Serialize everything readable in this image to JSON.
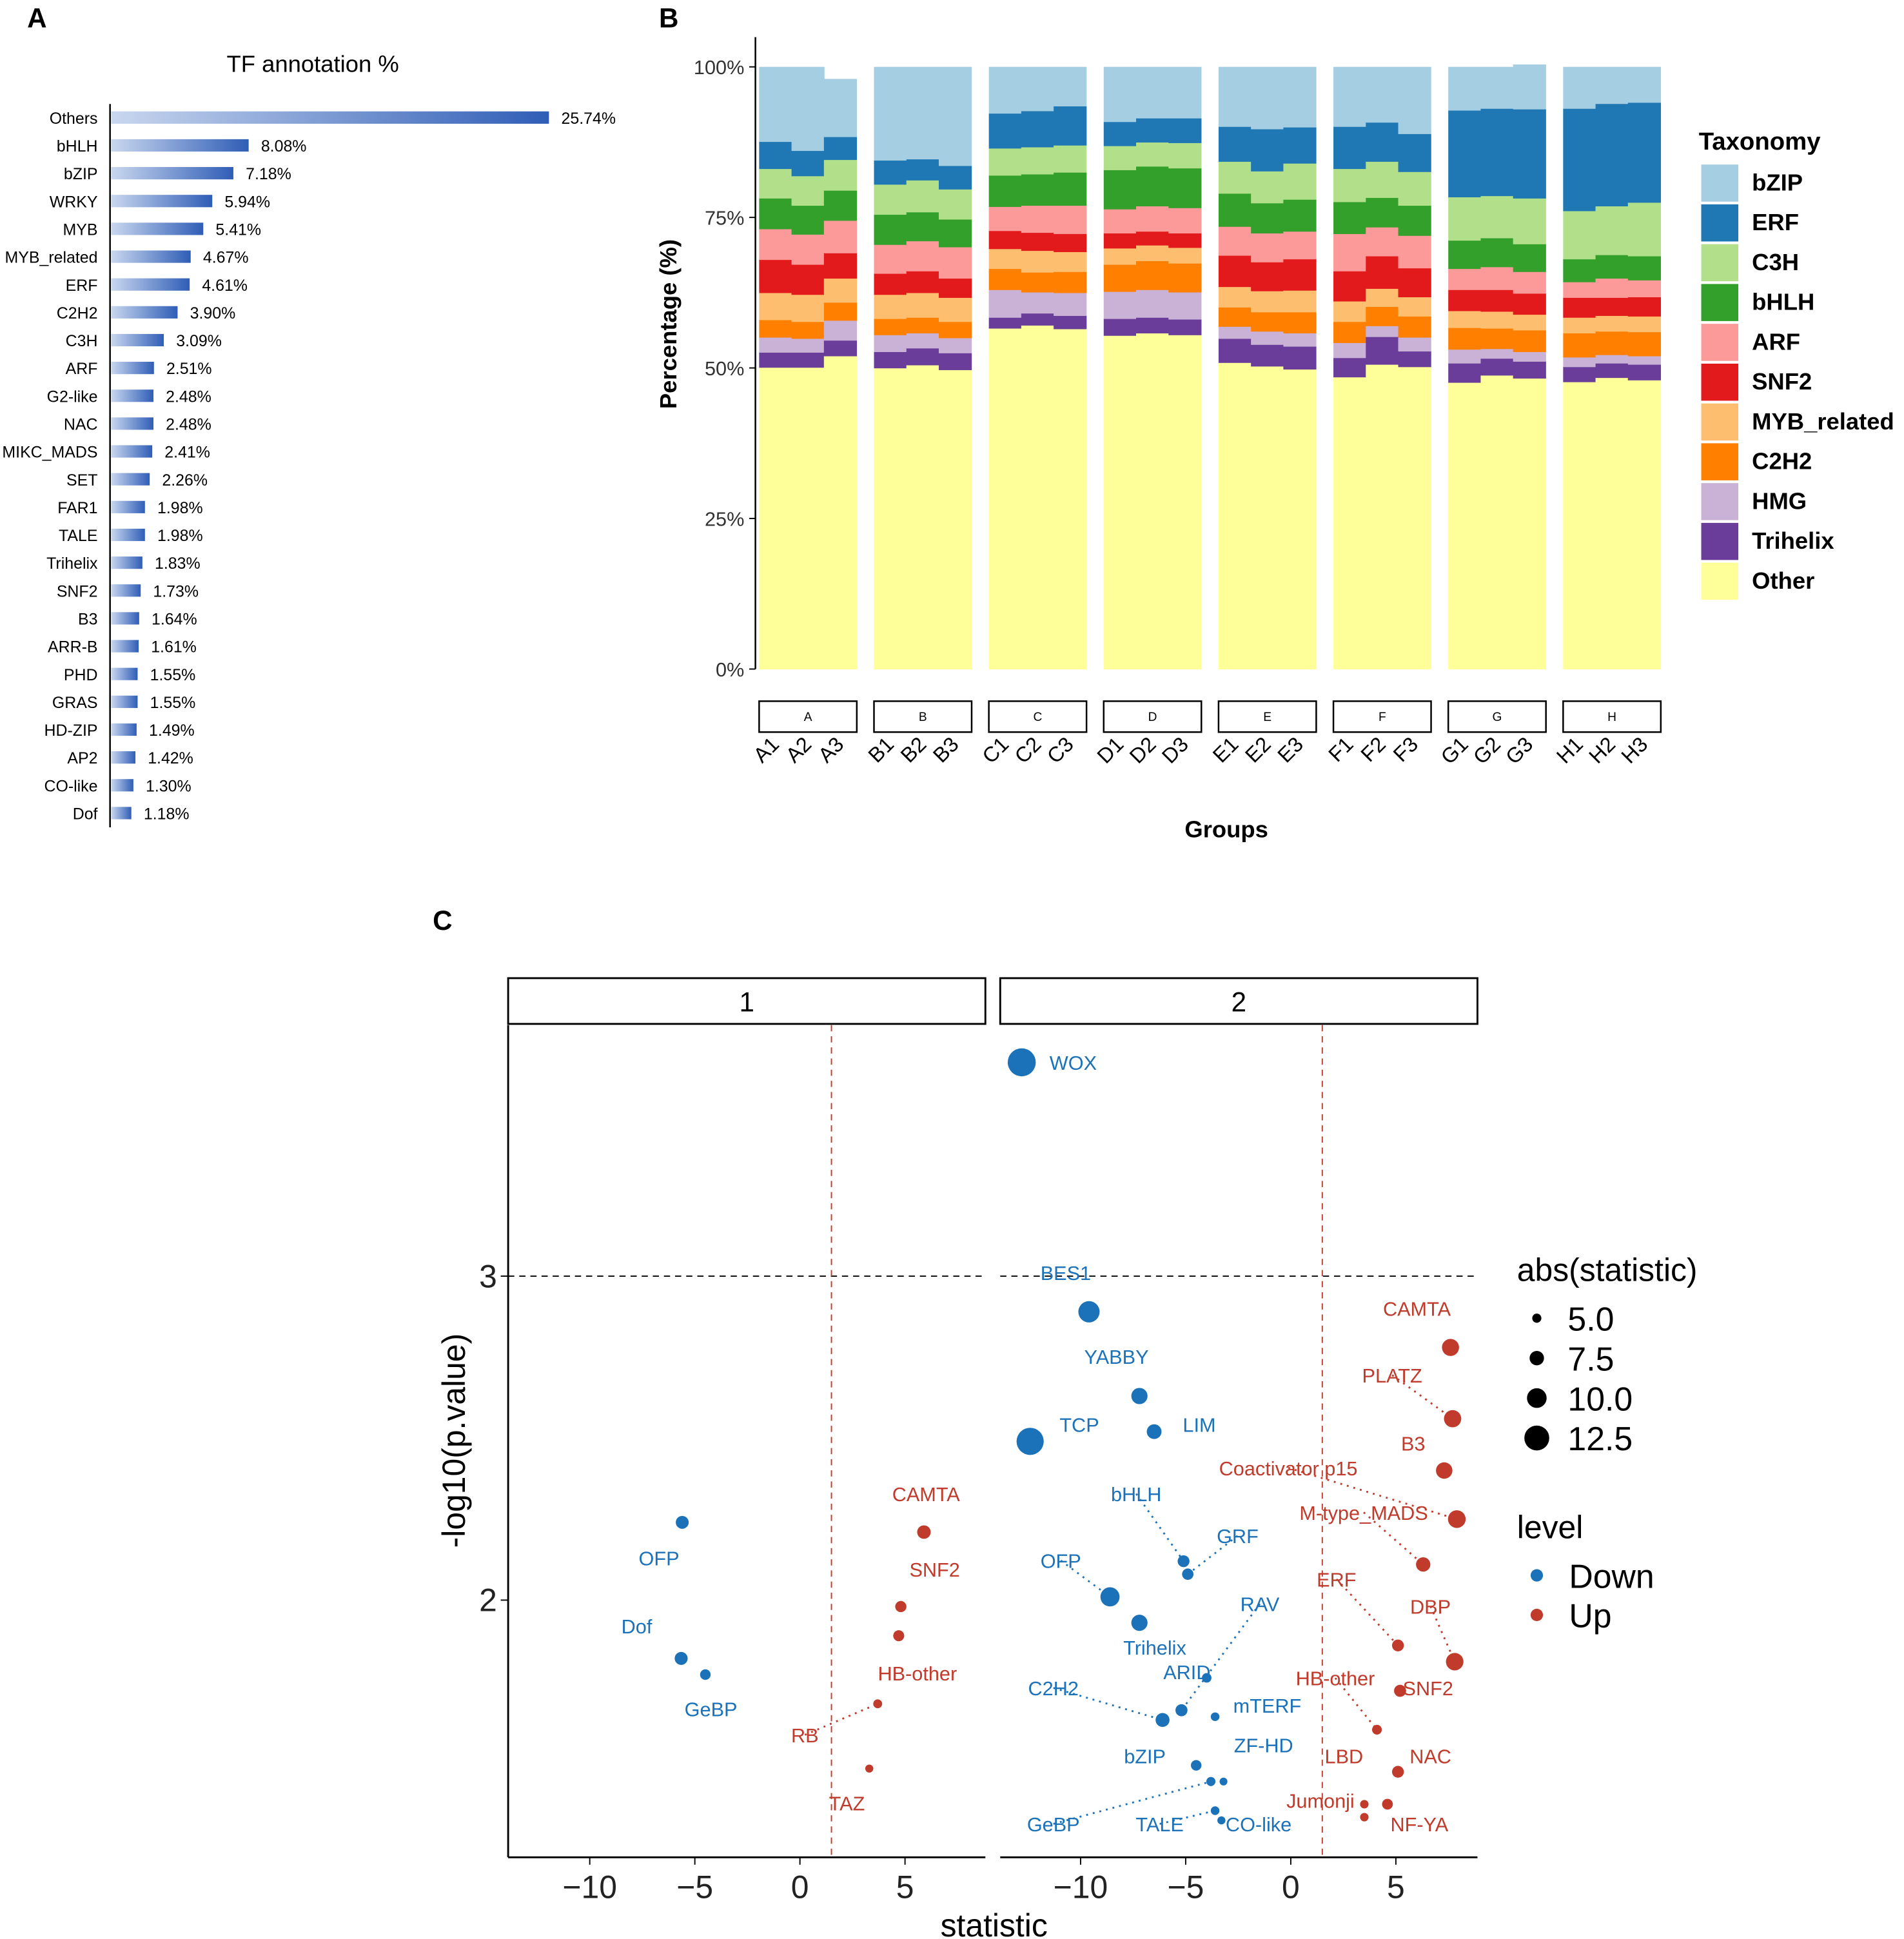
{
  "panel_labels": {
    "a": "A",
    "b": "B",
    "c": "C"
  },
  "chart_data": [
    {
      "type": "bar",
      "orientation": "horizontal",
      "title": "TF annotation %",
      "categories": [
        "Others",
        "bHLH",
        "bZIP",
        "WRKY",
        "MYB",
        "MYB_related",
        "ERF",
        "C2H2",
        "C3H",
        "ARF",
        "G2-like",
        "NAC",
        "MIKC_MADS",
        "SET",
        "FAR1",
        "TALE",
        "Trihelix",
        "SNF2",
        "B3",
        "ARR-B",
        "PHD",
        "GRAS",
        "HD-ZIP",
        "AP2",
        "CO-like",
        "Dof"
      ],
      "values": [
        25.74,
        8.08,
        7.18,
        5.94,
        5.41,
        4.67,
        4.61,
        3.9,
        3.09,
        2.51,
        2.48,
        2.48,
        2.41,
        2.26,
        1.98,
        1.98,
        1.83,
        1.73,
        1.64,
        1.61,
        1.55,
        1.55,
        1.49,
        1.42,
        1.3,
        1.18
      ],
      "data_labels": [
        "25.74%",
        "8.08%",
        "7.18%",
        "5.94%",
        "5.41%",
        "4.67%",
        "4.61%",
        "3.90%",
        "3.09%",
        "2.51%",
        "2.48%",
        "2.48%",
        "2.41%",
        "2.26%",
        "1.98%",
        "1.98%",
        "1.83%",
        "1.73%",
        "1.64%",
        "1.61%",
        "1.55%",
        "1.55%",
        "1.49%",
        "1.42%",
        "1.30%",
        "1.18%"
      ],
      "colors": {
        "start": "#c9d7ef",
        "end": "#2f5db6"
      }
    },
    {
      "type": "bar",
      "stacked": true,
      "xlabel": "Groups",
      "ylabel": "Percentage (%)",
      "ylim": [
        0,
        100
      ],
      "yticks": [
        "0%",
        "25%",
        "50%",
        "75%",
        "100%"
      ],
      "yticks_values": [
        0,
        25,
        50,
        75,
        100
      ],
      "legend_title": "Taxonomy",
      "legend_position": "right",
      "groups": [
        "A",
        "B",
        "C",
        "D",
        "E",
        "F",
        "G",
        "H"
      ],
      "categories": [
        "A1",
        "A2",
        "A3",
        "B1",
        "B2",
        "B3",
        "C1",
        "C2",
        "C3",
        "D1",
        "D2",
        "D3",
        "E1",
        "E2",
        "E3",
        "F1",
        "F2",
        "F3",
        "G1",
        "G2",
        "G3",
        "H1",
        "H2",
        "H3"
      ],
      "series": [
        {
          "name": "Other",
          "color": "#ffff99",
          "values": [
            50.1,
            50.1,
            52.0,
            50.0,
            50.5,
            49.7,
            56.6,
            57.1,
            56.5,
            55.4,
            55.8,
            55.5,
            50.9,
            50.3,
            49.8,
            48.5,
            50.6,
            50.2,
            47.6,
            48.8,
            48.3,
            47.7,
            48.4,
            48.0
          ]
        },
        {
          "name": "Trihelix",
          "color": "#6a3d9a",
          "values": [
            2.5,
            2.5,
            2.6,
            2.7,
            2.8,
            2.8,
            1.8,
            2.0,
            2.2,
            2.8,
            2.6,
            2.6,
            4.0,
            3.6,
            3.8,
            3.2,
            4.6,
            2.6,
            3.2,
            2.8,
            2.8,
            2.5,
            2.4,
            2.6
          ]
        },
        {
          "name": "HMG",
          "color": "#cab2d6",
          "values": [
            2.5,
            2.3,
            3.3,
            2.8,
            2.5,
            2.5,
            4.6,
            3.5,
            3.8,
            4.5,
            4.6,
            4.5,
            2.0,
            2.2,
            2.2,
            2.5,
            1.8,
            2.3,
            2.3,
            1.6,
            1.6,
            1.6,
            1.4,
            1.4
          ]
        },
        {
          "name": "C2H2",
          "color": "#ff7f00",
          "values": [
            2.9,
            2.8,
            3.0,
            2.7,
            2.6,
            2.7,
            3.5,
            3.3,
            3.5,
            4.5,
            4.8,
            4.8,
            3.2,
            3.2,
            3.5,
            3.5,
            3.2,
            3.5,
            3.6,
            3.4,
            3.6,
            4.0,
            3.9,
            4.0
          ]
        },
        {
          "name": "MYB_related",
          "color": "#fdbf6f",
          "values": [
            4.5,
            4.5,
            4.0,
            4.0,
            4.1,
            4.0,
            3.3,
            3.6,
            3.3,
            2.7,
            2.6,
            2.6,
            3.4,
            3.5,
            3.6,
            3.4,
            3.0,
            3.2,
            2.8,
            2.8,
            2.6,
            2.6,
            2.6,
            2.6
          ]
        },
        {
          "name": "SNF2",
          "color": "#e31a1c",
          "values": [
            5.5,
            5.0,
            4.2,
            3.5,
            3.6,
            3.2,
            3.0,
            3.0,
            3.0,
            2.5,
            2.3,
            2.4,
            5.2,
            4.8,
            5.2,
            5.0,
            5.4,
            4.8,
            3.5,
            3.6,
            3.5,
            3.3,
            3.0,
            3.2
          ]
        },
        {
          "name": "ARF",
          "color": "#fb9a99",
          "values": [
            5.1,
            5.0,
            5.4,
            4.8,
            5.0,
            5.2,
            4.0,
            4.5,
            4.7,
            4.0,
            4.2,
            4.2,
            4.8,
            4.8,
            4.6,
            6.2,
            4.8,
            5.4,
            3.5,
            3.8,
            3.6,
            2.6,
            3.2,
            2.8
          ]
        },
        {
          "name": "bHLH",
          "color": "#33a02c",
          "values": [
            5.1,
            4.8,
            5.0,
            5.0,
            4.8,
            4.6,
            5.2,
            5.2,
            5.5,
            6.5,
            6.6,
            6.6,
            5.5,
            5.0,
            5.3,
            5.3,
            4.9,
            5.0,
            4.7,
            4.8,
            4.6,
            3.8,
            3.9,
            4.0
          ]
        },
        {
          "name": "C3H",
          "color": "#b2df8a",
          "values": [
            4.9,
            4.9,
            5.1,
            5.0,
            5.3,
            5.0,
            4.5,
            4.5,
            4.5,
            4.0,
            4.0,
            4.2,
            5.3,
            5.3,
            6.0,
            5.5,
            6.0,
            5.6,
            7.2,
            7.0,
            7.6,
            8.0,
            8.1,
            8.9
          ]
        },
        {
          "name": "ERF",
          "color": "#1f78b4",
          "values": [
            4.5,
            4.2,
            3.8,
            4.0,
            3.5,
            3.9,
            5.8,
            6.0,
            6.5,
            4.0,
            4.0,
            4.1,
            5.8,
            7.0,
            6.0,
            7.0,
            6.5,
            6.3,
            14.4,
            14.5,
            14.8,
            17.0,
            17.0,
            16.6
          ]
        },
        {
          "name": "bZIP",
          "color": "#a6cee3",
          "values": [
            12.4,
            13.9,
            9.6,
            15.5,
            15.3,
            16.4,
            7.7,
            7.3,
            6.5,
            9.1,
            8.5,
            8.5,
            9.9,
            10.3,
            10.0,
            9.9,
            9.2,
            11.1,
            7.2,
            6.9,
            7.4,
            6.9,
            6.1,
            5.9
          ]
        }
      ],
      "legend_order": [
        "bZIP",
        "ERF",
        "C3H",
        "bHLH",
        "ARF",
        "SNF2",
        "MYB_related",
        "C2H2",
        "HMG",
        "Trihelix",
        "Other"
      ]
    },
    {
      "type": "scatter",
      "xlabel": "statistic",
      "ylabel": "-log10(p.value)",
      "facets": [
        "1",
        "2"
      ],
      "xlim": [
        -14,
        9
      ],
      "ylim": [
        1.2,
        3.77
      ],
      "xticks": [
        -10,
        -5,
        0,
        5
      ],
      "xtick_labels": [
        "−10",
        "−5",
        "0",
        "5"
      ],
      "yticks": [
        2,
        3
      ],
      "ytick_labels": [
        "2",
        "3"
      ],
      "hline": 3,
      "vline": 1.5,
      "size_legend_title": "abs(statistic)",
      "size_legend": [
        "5.0",
        "7.5",
        "10.0",
        "12.5"
      ],
      "size_legend_values": [
        5.0,
        7.5,
        10.0,
        12.5
      ],
      "color_legend_title": "level",
      "levels": [
        {
          "name": "Down",
          "color": "#1c72b9"
        },
        {
          "name": "Up",
          "color": "#c03b2b"
        }
      ],
      "points": [
        {
          "facet": "1",
          "label": "OFP",
          "x": -5.6,
          "y": 2.24,
          "level": "Down"
        },
        {
          "facet": "1",
          "label": "Dof",
          "x": -5.65,
          "y": 1.82,
          "level": "Down"
        },
        {
          "facet": "1",
          "label": "GeBP",
          "x": -4.5,
          "y": 1.77,
          "level": "Down"
        },
        {
          "facet": "1",
          "label": "CAMTA",
          "x": 5.9,
          "y": 2.21,
          "level": "Up"
        },
        {
          "facet": "1",
          "label": "SNF2",
          "x": 4.8,
          "y": 1.98,
          "level": "Up"
        },
        {
          "facet": "1",
          "label": "HB-other",
          "x": 4.7,
          "y": 1.89,
          "level": "Up"
        },
        {
          "facet": "1",
          "label": "RB",
          "x": 3.7,
          "y": 1.68,
          "level": "Up"
        },
        {
          "facet": "1",
          "label": "TAZ",
          "x": 3.3,
          "y": 1.48,
          "level": "Up"
        },
        {
          "facet": "2",
          "label": "WOX",
          "x": -12.8,
          "y": 3.66,
          "level": "Down"
        },
        {
          "facet": "2",
          "label": "BES1",
          "x": -9.6,
          "y": 2.89,
          "level": "Down"
        },
        {
          "facet": "2",
          "label": "YABBY",
          "x": -7.2,
          "y": 2.63,
          "level": "Down"
        },
        {
          "facet": "2",
          "label": "TCP",
          "x": -12.4,
          "y": 2.49,
          "level": "Down"
        },
        {
          "facet": "2",
          "label": "LIM",
          "x": -6.5,
          "y": 2.52,
          "level": "Down"
        },
        {
          "facet": "2",
          "label": "bHLH",
          "x": -5.1,
          "y": 2.12,
          "level": "Down"
        },
        {
          "facet": "2",
          "label": "GRF",
          "x": -4.9,
          "y": 2.08,
          "level": "Down"
        },
        {
          "facet": "2",
          "label": "OFP",
          "x": -8.6,
          "y": 2.01,
          "level": "Down"
        },
        {
          "facet": "2",
          "label": "Trihelix",
          "x": -7.2,
          "y": 1.93,
          "level": "Down"
        },
        {
          "facet": "2",
          "label": "RAV",
          "x": -5.2,
          "y": 1.66,
          "level": "Down"
        },
        {
          "facet": "2",
          "label": "ARID",
          "x": -4.0,
          "y": 1.76,
          "level": "Down"
        },
        {
          "facet": "2",
          "label": "mTERF",
          "x": -3.6,
          "y": 1.64,
          "level": "Down"
        },
        {
          "facet": "2",
          "label": "C2H2",
          "x": -6.1,
          "y": 1.63,
          "level": "Down"
        },
        {
          "facet": "2",
          "label": "bZIP",
          "x": -4.5,
          "y": 1.49,
          "level": "Down"
        },
        {
          "facet": "2",
          "label": "GeBP",
          "x": -3.8,
          "y": 1.44,
          "level": "Down"
        },
        {
          "facet": "2",
          "label": "ZF-HD",
          "x": -3.2,
          "y": 1.44,
          "level": "Down"
        },
        {
          "facet": "2",
          "label": "TALE",
          "x": -3.6,
          "y": 1.35,
          "level": "Down"
        },
        {
          "facet": "2",
          "label": "CO-like",
          "x": -3.3,
          "y": 1.32,
          "level": "Down"
        },
        {
          "facet": "2",
          "label": "CAMTA",
          "x": 7.6,
          "y": 2.78,
          "level": "Up"
        },
        {
          "facet": "2",
          "label": "PLATZ",
          "x": 7.7,
          "y": 2.56,
          "level": "Up"
        },
        {
          "facet": "2",
          "label": "B3",
          "x": 7.3,
          "y": 2.4,
          "level": "Up"
        },
        {
          "facet": "2",
          "label": "Coactivator p15",
          "x": 7.9,
          "y": 2.25,
          "level": "Up"
        },
        {
          "facet": "2",
          "label": "M-type_MADS",
          "x": 6.3,
          "y": 2.11,
          "level": "Up"
        },
        {
          "facet": "2",
          "label": "ERF",
          "x": 5.1,
          "y": 1.86,
          "level": "Up"
        },
        {
          "facet": "2",
          "label": "DBP",
          "x": 7.8,
          "y": 1.81,
          "level": "Up"
        },
        {
          "facet": "2",
          "label": "SNF2",
          "x": 5.2,
          "y": 1.72,
          "level": "Up"
        },
        {
          "facet": "2",
          "label": "HB-other",
          "x": 4.1,
          "y": 1.6,
          "level": "Up"
        },
        {
          "facet": "2",
          "label": "NAC",
          "x": 5.1,
          "y": 1.47,
          "level": "Up"
        },
        {
          "facet": "2",
          "label": "NF-YA",
          "x": 4.6,
          "y": 1.37,
          "level": "Up"
        },
        {
          "facet": "2",
          "label": "LBD",
          "x": 3.5,
          "y": 1.37,
          "level": "Up"
        },
        {
          "facet": "2",
          "label": "Jumonji",
          "x": 3.5,
          "y": 1.33,
          "level": "Up"
        }
      ]
    }
  ]
}
